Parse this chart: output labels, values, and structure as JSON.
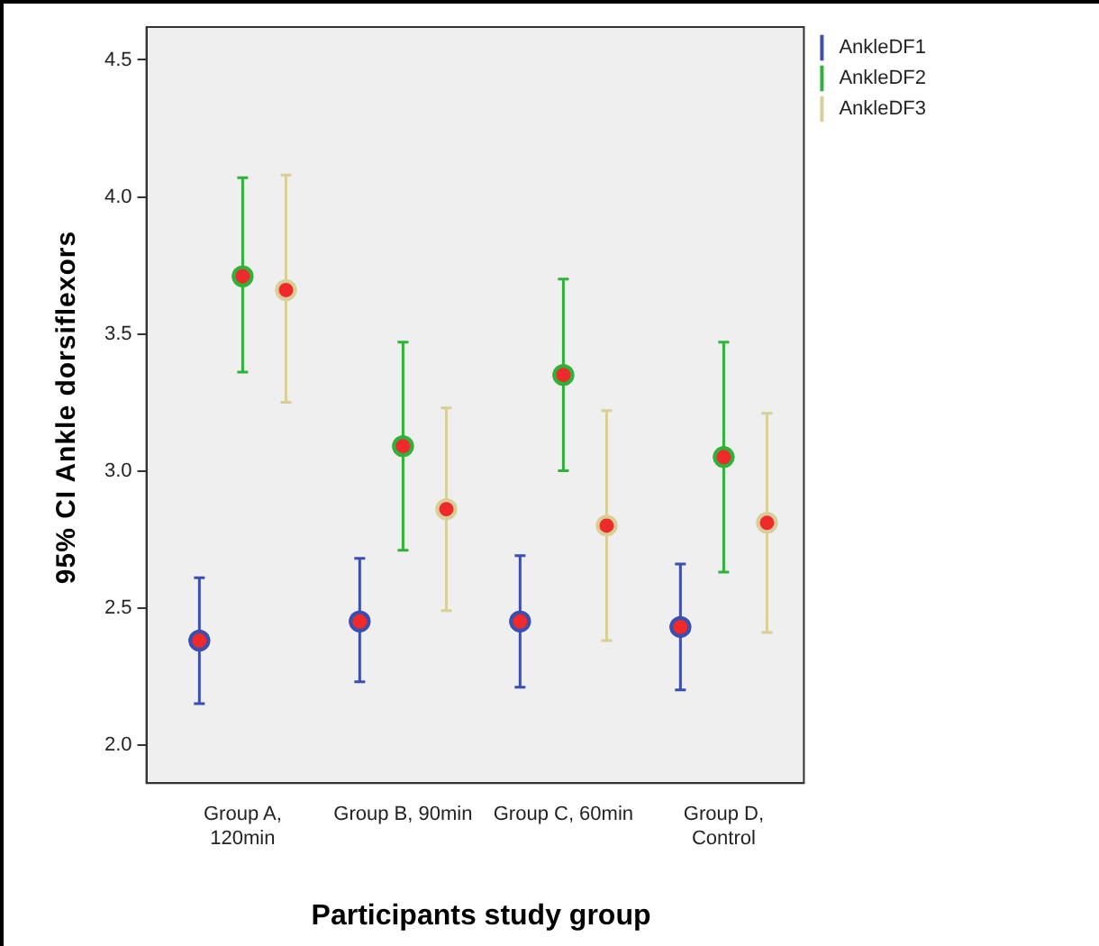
{
  "chart_data": {
    "type": "scatter",
    "xlabel": "Participants study group",
    "ylabel": "95% CI Ankle dorsiflexors",
    "categories": [
      "Group A, 120min",
      "Group B, 90min",
      "Group C, 60min",
      "Group D, Control"
    ],
    "series": [
      {
        "name": "AnkleDF1",
        "color": "#3a4fb0",
        "values": [
          2.38,
          2.45,
          2.45,
          2.43
        ],
        "errors": [
          [
            2.15,
            2.61
          ],
          [
            2.23,
            2.68
          ],
          [
            2.21,
            2.69
          ],
          [
            2.2,
            2.66
          ]
        ]
      },
      {
        "name": "AnkleDF2",
        "color": "#2eb23a",
        "values": [
          3.71,
          3.09,
          3.35,
          3.05
        ],
        "errors": [
          [
            3.36,
            4.07
          ],
          [
            2.71,
            3.47
          ],
          [
            3.0,
            3.7
          ],
          [
            2.63,
            3.47
          ]
        ]
      },
      {
        "name": "AnkleDF3",
        "color": "#d8cf98",
        "values": [
          3.66,
          2.86,
          2.8,
          2.81
        ],
        "errors": [
          [
            3.25,
            4.08
          ],
          [
            2.49,
            3.23
          ],
          [
            2.38,
            3.22
          ],
          [
            2.41,
            3.21
          ]
        ]
      }
    ],
    "ylim": [
      1.86,
      4.62
    ],
    "yticks": [
      {
        "value": 2,
        "label": "2.0"
      },
      {
        "value": 2.5,
        "label": "2.5"
      },
      {
        "value": 3,
        "label": "3.0"
      },
      {
        "value": 3.5,
        "label": "3.5"
      },
      {
        "value": 4,
        "label": "4.0"
      },
      {
        "value": 4.5,
        "label": "4.5"
      }
    ],
    "marker": "circle",
    "grid": false,
    "legend": "top right"
  }
}
